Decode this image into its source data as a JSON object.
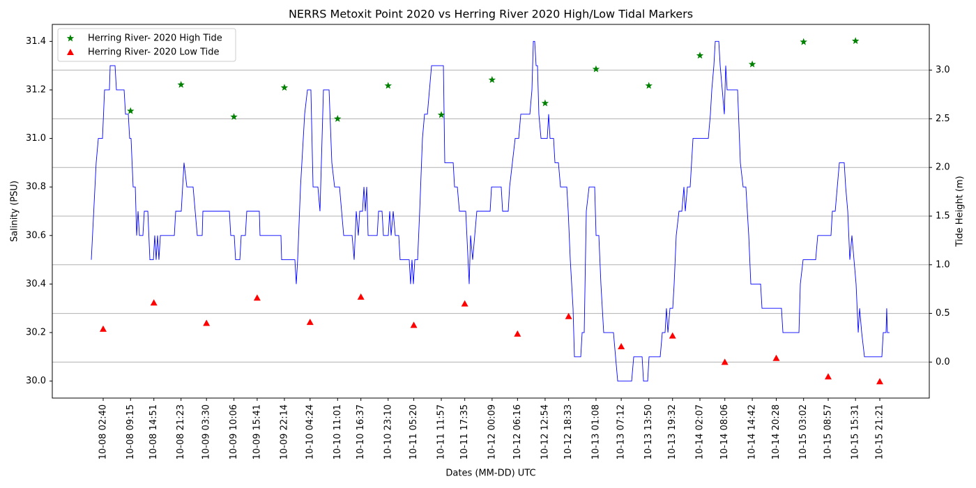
{
  "chart_data": {
    "type": "line",
    "title": "NERRS Metoxit Point 2020 vs Herring River 2020 High/Low Tidal Markers",
    "x_label": "Dates (MM-DD) UTC",
    "y_label": "Salinity (PSU)",
    "y2_label": "Tide Height (m)",
    "xlim": [
      "10-07 14:26",
      "10-16 09:15"
    ],
    "xticks": [
      "10-08 02:40",
      "10-08 09:15",
      "10-08 14:51",
      "10-08 21:23",
      "10-09 03:30",
      "10-09 10:06",
      "10-09 15:41",
      "10-09 22:14",
      "10-10 04:24",
      "10-10 11:01",
      "10-10 16:37",
      "10-10 23:10",
      "10-11 05:20",
      "10-11 11:57",
      "10-11 17:35",
      "10-12 00:09",
      "10-12 06:16",
      "10-12 12:54",
      "10-12 18:33",
      "10-13 01:08",
      "10-13 07:12",
      "10-13 13:50",
      "10-13 19:32",
      "10-14 02:07",
      "10-14 08:06",
      "10-14 14:42",
      "10-14 20:28",
      "10-15 03:02",
      "10-15 08:57",
      "10-15 15:31",
      "10-15 21:21"
    ],
    "ylim": [
      29.93,
      31.47
    ],
    "yticks": [
      {
        "value": 30,
        "label": "30.0"
      },
      30.2,
      30.4,
      30.6,
      30.8,
      {
        "value": 31,
        "label": "31.0"
      },
      31.2,
      31.4
    ],
    "y2lim": [
      -0.37,
      3.47
    ],
    "y2ticks": [
      {
        "value": 0,
        "label": "0.0"
      },
      0.5,
      {
        "value": 1,
        "label": "1.0"
      },
      1.5,
      {
        "value": 2,
        "label": "2.0"
      },
      2.5,
      {
        "value": 3,
        "label": "3.0"
      }
    ],
    "grid": "y2",
    "legend": "upper left",
    "series": [
      {
        "color": "#0000ff",
        "marker": "none",
        "x": [
          "10-07 23:49",
          "10-08 00:59",
          "10-08 01:30",
          "10-08 02:30",
          "10-08 03:00",
          "10-08 04:10",
          "10-08 04:21",
          "10-08 05:31",
          "10-08 05:51",
          "10-08 07:42",
          "10-08 08:02",
          "10-08 08:42",
          "10-08 09:02",
          "10-08 09:22",
          "10-08 09:52",
          "10-08 10:23",
          "10-08 10:43",
          "10-08 11:03",
          "10-08 11:23",
          "10-08 12:13",
          "10-08 12:33",
          "10-08 13:24",
          "10-08 13:54",
          "10-08 14:44",
          "10-08 15:04",
          "10-08 15:24",
          "10-08 15:44",
          "10-08 16:04",
          "10-08 16:25",
          "10-08 19:46",
          "10-08 20:06",
          "10-08 21:26",
          "10-08 22:06",
          "10-08 22:47",
          "10-09 00:17",
          "10-09 00:47",
          "10-09 01:17",
          "10-09 02:28",
          "10-09 02:38",
          "10-09 09:00",
          "10-09 09:20",
          "10-09 10:10",
          "10-09 10:30",
          "10-09 11:31",
          "10-09 11:51",
          "10-09 12:51",
          "10-09 13:11",
          "10-09 16:12",
          "10-09 16:22",
          "10-09 21:24",
          "10-09 21:34",
          "10-10 00:45",
          "10-10 01:05",
          "10-10 01:25",
          "10-10 02:06",
          "10-10 03:06",
          "10-10 03:46",
          "10-10 04:36",
          "10-10 05:07",
          "10-10 06:17",
          "10-10 06:47",
          "10-10 07:37",
          "10-10 08:58",
          "10-10 09:38",
          "10-10 10:18",
          "10-10 11:29",
          "10-10 11:59",
          "10-10 12:29",
          "10-10 14:30",
          "10-10 15:00",
          "10-10 15:30",
          "10-10 16:00",
          "10-10 16:20",
          "10-10 17:00",
          "10-10 17:21",
          "10-10 17:41",
          "10-10 18:01",
          "10-10 18:21",
          "10-10 20:32",
          "10-10 20:52",
          "10-10 21:42",
          "10-10 22:02",
          "10-10 23:12",
          "10-10 23:33",
          "10-10 23:53",
          "10-11 00:23",
          "10-11 00:53",
          "10-11 01:43",
          "10-11 02:03",
          "10-11 04:14",
          "10-11 04:34",
          "10-11 04:54",
          "10-11 05:14",
          "10-11 05:35",
          "10-11 06:15",
          "10-11 06:45",
          "10-11 07:25",
          "10-11 07:55",
          "10-11 08:36",
          "10-11 09:06",
          "10-11 09:36",
          "10-11 12:27",
          "10-11 12:47",
          "10-11 14:48",
          "10-11 15:08",
          "10-11 15:48",
          "10-11 16:18",
          "10-11 17:49",
          "10-11 18:39",
          "10-11 18:59",
          "10-11 19:29",
          "10-11 19:59",
          "10-11 20:29",
          "10-11 23:41",
          "10-12 00:01",
          "10-12 02:21",
          "10-12 02:41",
          "10-12 04:02",
          "10-12 04:22",
          "10-12 05:02",
          "10-12 05:42",
          "10-12 06:33",
          "10-12 07:03",
          "10-12 09:14",
          "10-12 09:44",
          "10-12 10:04",
          "10-12 10:24",
          "10-12 10:44",
          "10-12 11:04",
          "10-12 11:24",
          "10-12 11:55",
          "10-12 13:25",
          "10-12 13:45",
          "10-12 14:05",
          "10-12 14:56",
          "10-12 15:16",
          "10-12 16:06",
          "10-12 16:36",
          "10-12 18:07",
          "10-12 18:27",
          "10-12 18:57",
          "10-12 19:37",
          "10-12 19:57",
          "10-12 21:28",
          "10-12 21:48",
          "10-12 22:18",
          "10-12 22:48",
          "10-12 23:28",
          "10-13 00:49",
          "10-13 01:09",
          "10-13 01:49",
          "10-13 02:19",
          "10-13 02:59",
          "10-13 05:20",
          "10-13 05:50",
          "10-13 06:21",
          "10-13 09:42",
          "10-13 10:12",
          "10-13 12:13",
          "10-13 12:33",
          "10-13 13:33",
          "10-13 13:53",
          "10-13 16:34",
          "10-13 17:04",
          "10-13 17:44",
          "10-13 18:04",
          "10-13 18:25",
          "10-13 18:55",
          "10-13 19:35",
          "10-13 19:55",
          "10-13 20:25",
          "10-13 21:05",
          "10-13 21:46",
          "10-13 22:16",
          "10-13 22:36",
          "10-13 23:06",
          "10-13 23:46",
          "10-14 00:27",
          "10-14 04:08",
          "10-14 04:38",
          "10-14 04:58",
          "10-14 05:28",
          "10-14 05:48",
          "10-14 06:39",
          "10-14 06:59",
          "10-14 07:29",
          "10-14 07:59",
          "10-14 08:19",
          "10-14 08:39",
          "10-14 11:10",
          "10-14 11:50",
          "10-14 12:30",
          "10-14 13:10",
          "10-14 13:51",
          "10-14 14:21",
          "10-14 16:42",
          "10-14 17:02",
          "10-14 21:43",
          "10-14 22:04",
          "10-15 01:55",
          "10-15 02:15",
          "10-15 02:55",
          "10-15 05:56",
          "10-15 06:26",
          "10-15 09:37",
          "10-15 09:57",
          "10-15 10:38",
          "10-15 11:08",
          "10-15 11:38",
          "10-15 12:48",
          "10-15 13:09",
          "10-15 13:39",
          "10-15 14:09",
          "10-15 14:39",
          "10-15 15:09",
          "10-15 15:39",
          "10-15 16:10",
          "10-15 16:30",
          "10-15 17:00",
          "10-15 17:40",
          "10-15 21:51",
          "10-15 22:11",
          "10-15 22:51",
          "10-15 23:01",
          "10-15 23:11",
          "10-15 23:41"
        ],
        "values": [
          30.5,
          30.9,
          31.0,
          31.0,
          31.2,
          31.2,
          31.3,
          31.3,
          31.2,
          31.2,
          31.1,
          31.1,
          31.0,
          31.0,
          30.8,
          30.8,
          30.6,
          30.7,
          30.6,
          30.6,
          30.7,
          30.7,
          30.5,
          30.5,
          30.6,
          30.5,
          30.6,
          30.5,
          30.6,
          30.6,
          30.7,
          30.7,
          30.9,
          30.8,
          30.8,
          30.7,
          30.6,
          30.6,
          30.7,
          30.7,
          30.6,
          30.6,
          30.5,
          30.5,
          30.6,
          30.6,
          30.7,
          30.7,
          30.6,
          30.6,
          30.5,
          30.5,
          30.4,
          30.5,
          30.8,
          31.1,
          31.2,
          31.2,
          30.8,
          30.8,
          30.7,
          31.2,
          31.2,
          30.9,
          30.8,
          30.8,
          30.7,
          30.6,
          30.6,
          30.5,
          30.7,
          30.6,
          30.7,
          30.7,
          30.8,
          30.7,
          30.8,
          30.6,
          30.6,
          30.7,
          30.7,
          30.6,
          30.6,
          30.7,
          30.6,
          30.7,
          30.6,
          30.6,
          30.5,
          30.5,
          30.4,
          30.5,
          30.4,
          30.5,
          30.5,
          30.7,
          31.0,
          31.1,
          31.1,
          31.2,
          31.3,
          31.3,
          30.9,
          30.9,
          30.8,
          30.8,
          30.7,
          30.7,
          30.4,
          30.6,
          30.5,
          30.6,
          30.7,
          30.7,
          30.8,
          30.8,
          30.7,
          30.7,
          30.8,
          30.9,
          31.0,
          31.0,
          31.1,
          31.1,
          31.2,
          31.4,
          31.4,
          31.3,
          31.3,
          31.1,
          31.0,
          31.0,
          31.1,
          31.0,
          31.0,
          30.9,
          30.9,
          30.8,
          30.8,
          30.7,
          30.5,
          30.3,
          30.1,
          30.1,
          30.2,
          30.2,
          30.7,
          30.8,
          30.8,
          30.6,
          30.6,
          30.4,
          30.2,
          30.2,
          30.1,
          30.0,
          30.0,
          30.1,
          30.1,
          30.0,
          30.0,
          30.1,
          30.1,
          30.2,
          30.2,
          30.3,
          30.2,
          30.3,
          30.3,
          30.4,
          30.6,
          30.7,
          30.7,
          30.8,
          30.7,
          30.8,
          30.8,
          31.0,
          31.0,
          31.1,
          31.2,
          31.3,
          31.4,
          31.4,
          31.3,
          31.2,
          31.1,
          31.3,
          31.2,
          31.2,
          30.9,
          30.8,
          30.8,
          30.6,
          30.4,
          30.4,
          30.3,
          30.3,
          30.2,
          30.2,
          30.4,
          30.5,
          30.5,
          30.6,
          30.6,
          30.7,
          30.7,
          30.8,
          30.9,
          30.9,
          30.8,
          30.7,
          30.5,
          30.6,
          30.5,
          30.4,
          30.2,
          30.3,
          30.2,
          30.1,
          30.1,
          30.2,
          30.2,
          30.3,
          30.2,
          30.2
        ]
      },
      {
        "name": "Herring River- 2020 High Tide",
        "color": "#008000",
        "marker": "star",
        "axis": "y2",
        "x": [
          "10-08 09:15",
          "10-08 21:23",
          "10-09 10:06",
          "10-09 22:14",
          "10-10 11:01",
          "10-10 23:10",
          "10-11 11:57",
          "10-12 00:09",
          "10-12 12:54",
          "10-13 01:08",
          "10-13 13:50",
          "10-14 02:07",
          "10-14 14:42",
          "10-15 03:02",
          "10-15 15:31"
        ],
        "values": [
          2.58,
          2.85,
          2.52,
          2.82,
          2.5,
          2.84,
          2.54,
          2.9,
          2.66,
          3.01,
          2.84,
          3.15,
          3.06,
          3.29,
          3.3
        ]
      },
      {
        "name": "Herring River- 2020 Low Tide",
        "color": "#ff0000",
        "marker": "triangle",
        "axis": "y2",
        "x": [
          "10-08 02:40",
          "10-08 14:51",
          "10-09 03:30",
          "10-09 15:41",
          "10-10 04:24",
          "10-10 16:37",
          "10-11 05:20",
          "10-11 17:35",
          "10-12 06:16",
          "10-12 18:33",
          "10-13 07:12",
          "10-13 19:32",
          "10-14 08:06",
          "10-14 20:28",
          "10-15 08:57",
          "10-15 21:21"
        ],
        "values": [
          0.34,
          0.61,
          0.4,
          0.66,
          0.41,
          0.67,
          0.38,
          0.6,
          0.29,
          0.47,
          0.16,
          0.27,
          0,
          0.04,
          -0.15,
          -0.2
        ]
      }
    ]
  }
}
